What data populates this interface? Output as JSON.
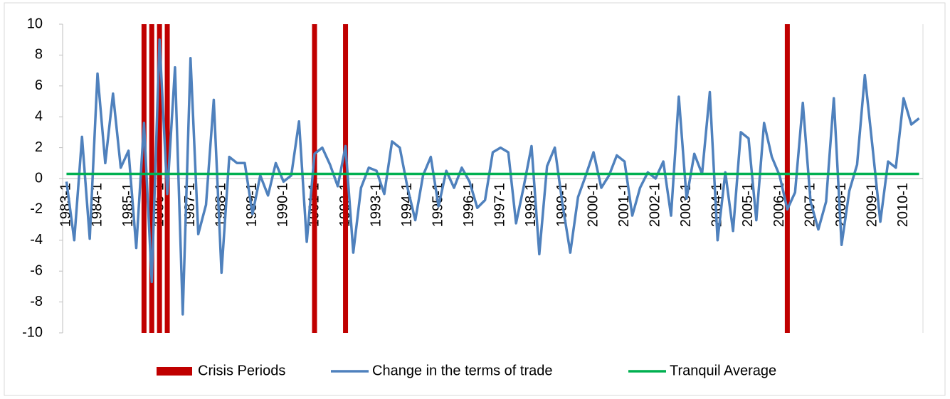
{
  "chart_data": {
    "type": "line",
    "categories": [
      "1983-1",
      null,
      null,
      null,
      "1984-1",
      null,
      null,
      null,
      "1985-1",
      null,
      null,
      null,
      "1986-1",
      null,
      null,
      null,
      "1987-1",
      null,
      null,
      null,
      "1988-1",
      null,
      null,
      null,
      "1989-1",
      null,
      null,
      null,
      "1990-1",
      null,
      null,
      null,
      "1991-1",
      null,
      null,
      null,
      "1992-1",
      null,
      null,
      null,
      "1993-1",
      null,
      null,
      null,
      "1994-1",
      null,
      null,
      null,
      "1995-1",
      null,
      null,
      null,
      "1996-1",
      null,
      null,
      null,
      "1997-1",
      null,
      null,
      null,
      "1998-1",
      null,
      null,
      null,
      "1999-1",
      null,
      null,
      null,
      "2000-1",
      null,
      null,
      null,
      "2001-1",
      null,
      null,
      null,
      "2002-1",
      null,
      null,
      null,
      "2003-1",
      null,
      null,
      null,
      "2004-1",
      null,
      null,
      null,
      "2005-1",
      null,
      null,
      null,
      "2006-1",
      null,
      null,
      null,
      "2007-1",
      null,
      null,
      null,
      "2008-1",
      null,
      null,
      null,
      "2009-1",
      null,
      null,
      null,
      "2010-1",
      null,
      null
    ],
    "series": [
      {
        "name": "Crisis Periods",
        "type": "bar",
        "color": "#c00000",
        "values": [
          null,
          null,
          null,
          null,
          null,
          null,
          null,
          null,
          null,
          null,
          10,
          10,
          10,
          10,
          null,
          null,
          null,
          null,
          null,
          null,
          null,
          null,
          null,
          null,
          null,
          null,
          null,
          null,
          null,
          null,
          null,
          null,
          10,
          null,
          null,
          null,
          10,
          null,
          null,
          null,
          null,
          null,
          null,
          null,
          null,
          null,
          null,
          null,
          null,
          null,
          null,
          null,
          null,
          null,
          null,
          null,
          null,
          null,
          null,
          null,
          null,
          null,
          null,
          null,
          null,
          null,
          null,
          null,
          null,
          null,
          null,
          null,
          null,
          null,
          null,
          null,
          null,
          null,
          null,
          null,
          null,
          null,
          null,
          null,
          null,
          null,
          null,
          null,
          null,
          null,
          null,
          null,
          null,
          10,
          null,
          null,
          null,
          null,
          null,
          null,
          null,
          null,
          null,
          null,
          null,
          null,
          null,
          null,
          null,
          null,
          null
        ]
      },
      {
        "name": "Change in the terms of trade",
        "type": "line",
        "color": "#4f81bd",
        "values": [
          -0.2,
          -4.0,
          2.7,
          -3.9,
          6.8,
          1.0,
          5.5,
          0.7,
          1.8,
          -4.5,
          3.6,
          -6.7,
          9.0,
          -1.0,
          7.2,
          -8.8,
          7.8,
          -3.6,
          -1.7,
          5.1,
          -6.1,
          1.4,
          1.0,
          1.0,
          -2.3,
          0.2,
          -1.1,
          1.0,
          -0.2,
          0.2,
          3.7,
          -4.1,
          1.6,
          2.0,
          0.9,
          -0.5,
          2.1,
          -4.8,
          -0.6,
          0.7,
          0.5,
          -1.0,
          2.4,
          2.0,
          -0.6,
          -2.7,
          0.2,
          1.4,
          -1.8,
          0.5,
          -0.6,
          0.7,
          -0.2,
          -1.9,
          -1.4,
          1.7,
          2.0,
          1.7,
          -2.9,
          -0.5,
          2.1,
          -4.9,
          0.8,
          2.0,
          -1.7,
          -4.8,
          -1.2,
          0.2,
          1.7,
          -0.6,
          0.2,
          1.5,
          1.1,
          -2.4,
          -0.6,
          0.4,
          0.0,
          1.1,
          -2.4,
          5.3,
          -1.3,
          1.6,
          0.3,
          5.6,
          -4.0,
          0.4,
          -3.4,
          3.0,
          2.6,
          -2.7,
          3.6,
          1.4,
          0.2,
          -2.0,
          -0.9,
          4.9,
          -1.5,
          -3.3,
          -1.5,
          5.2,
          -4.3,
          -0.8,
          0.9,
          6.7,
          2.0,
          -2.8,
          1.1,
          0.7,
          5.2,
          3.5,
          3.9
        ]
      },
      {
        "name": "Tranquil Average",
        "type": "line",
        "color": "#00b050",
        "values": [
          0.3,
          0.3,
          0.3,
          0.3,
          0.3,
          0.3,
          0.3,
          0.3,
          0.3,
          0.3,
          0.3,
          0.3,
          0.3,
          0.3,
          0.3,
          0.3,
          0.3,
          0.3,
          0.3,
          0.3,
          0.3,
          0.3,
          0.3,
          0.3,
          0.3,
          0.3,
          0.3,
          0.3,
          0.3,
          0.3,
          0.3,
          0.3,
          0.3,
          0.3,
          0.3,
          0.3,
          0.3,
          0.3,
          0.3,
          0.3,
          0.3,
          0.3,
          0.3,
          0.3,
          0.3,
          0.3,
          0.3,
          0.3,
          0.3,
          0.3,
          0.3,
          0.3,
          0.3,
          0.3,
          0.3,
          0.3,
          0.3,
          0.3,
          0.3,
          0.3,
          0.3,
          0.3,
          0.3,
          0.3,
          0.3,
          0.3,
          0.3,
          0.3,
          0.3,
          0.3,
          0.3,
          0.3,
          0.3,
          0.3,
          0.3,
          0.3,
          0.3,
          0.3,
          0.3,
          0.3,
          0.3,
          0.3,
          0.3,
          0.3,
          0.3,
          0.3,
          0.3,
          0.3,
          0.3,
          0.3,
          0.3,
          0.3,
          0.3,
          0.3,
          0.3,
          0.3,
          0.3,
          0.3,
          0.3,
          0.3,
          0.3,
          0.3,
          0.3,
          0.3,
          0.3,
          0.3,
          0.3,
          0.3,
          0.3,
          0.3,
          0.3
        ]
      }
    ],
    "ylim": [
      -10,
      10
    ],
    "yticks": [
      -10,
      -8,
      -6,
      -4,
      -2,
      0,
      2,
      4,
      6,
      8,
      10
    ],
    "grid": false,
    "legend": "bottom"
  }
}
